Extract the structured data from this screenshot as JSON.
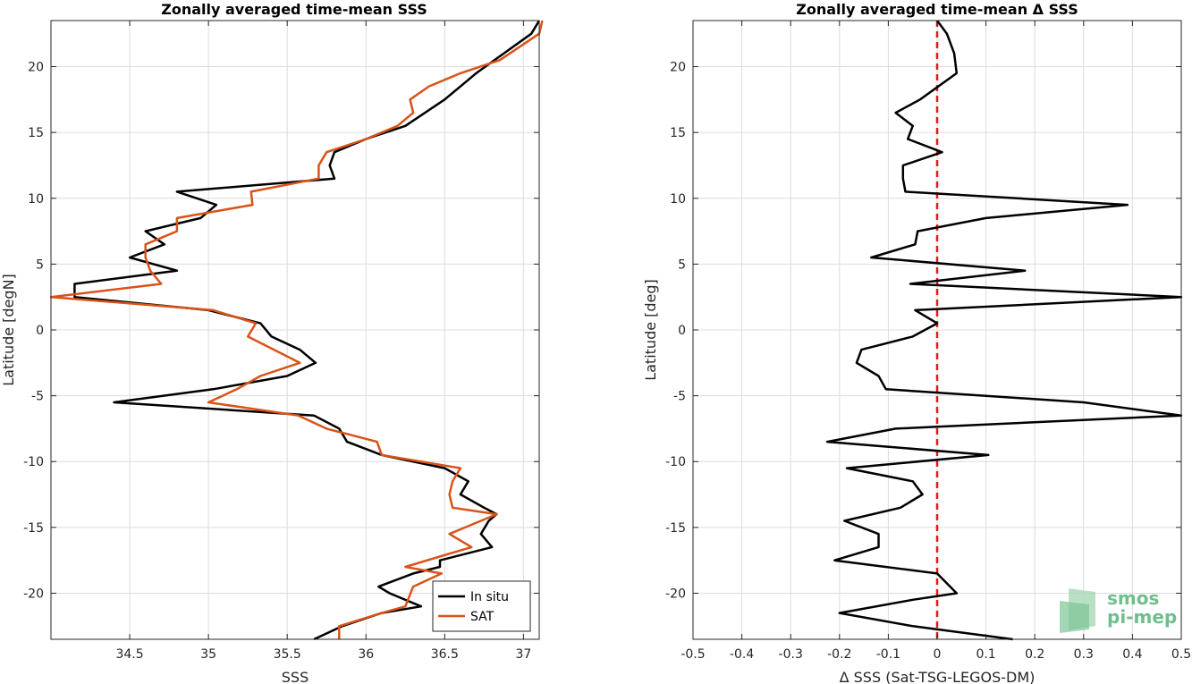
{
  "chart_data": [
    {
      "type": "line",
      "title": "Zonally averaged time-mean SSS",
      "xlabel": "SSS",
      "ylabel": "Latitude [degN]",
      "xlim": [
        34.0,
        37.1
      ],
      "ylim": [
        -23.5,
        23.5
      ],
      "xticks": [
        34.5,
        35,
        35.5,
        36,
        36.5,
        37
      ],
      "xtick_labels": [
        "34.5",
        "35",
        "35.5",
        "36",
        "36.5",
        "37"
      ],
      "yticks": [
        -20,
        -15,
        -10,
        -5,
        0,
        5,
        10,
        15,
        20
      ],
      "ytick_labels": [
        "-20",
        "-15",
        "-10",
        "-5",
        "0",
        "5",
        "10",
        "15",
        "20"
      ],
      "grid": true,
      "legend": "bottom-right",
      "series": [
        {
          "name": "In situ",
          "color": "#000000",
          "x": [
            35.67,
            35.85,
            36.1,
            36.35,
            36.15,
            36.08,
            36.3,
            36.47,
            36.47,
            36.8,
            36.73,
            36.78,
            36.83,
            36.75,
            36.6,
            36.65,
            36.5,
            36.1,
            35.88,
            35.83,
            35.67,
            34.4,
            35.03,
            35.5,
            35.68,
            35.58,
            35.4,
            35.33,
            35.0,
            34.15,
            34.15,
            34.8,
            34.5,
            34.72,
            34.6,
            34.95,
            35.05,
            34.8,
            35.8,
            35.77,
            35.8,
            36.0,
            36.25,
            36.5,
            36.7,
            37.05,
            37.1
          ],
          "y": [
            -23.5,
            -22.5,
            -21.5,
            -21.0,
            -20.0,
            -19.5,
            -18.5,
            -18.0,
            -17.5,
            -16.5,
            -15.5,
            -14.5,
            -14.0,
            -13.5,
            -12.5,
            -11.5,
            -10.5,
            -9.5,
            -8.5,
            -7.5,
            -6.5,
            -5.5,
            -4.5,
            -3.5,
            -2.5,
            -1.5,
            -0.5,
            0.5,
            1.5,
            2.5,
            3.5,
            4.5,
            5.5,
            6.5,
            7.5,
            8.5,
            9.5,
            10.5,
            11.5,
            12.5,
            13.5,
            14.5,
            15.5,
            17.5,
            19.5,
            22.5,
            23.5
          ]
        },
        {
          "name": "SAT",
          "color": "#d95319",
          "x": [
            35.83,
            35.83,
            36.1,
            36.25,
            36.3,
            36.48,
            36.25,
            36.67,
            36.53,
            36.83,
            36.55,
            36.53,
            36.55,
            36.6,
            36.1,
            36.07,
            35.75,
            35.57,
            35.0,
            35.18,
            35.33,
            35.58,
            35.25,
            35.3,
            35.03,
            34.0,
            34.7,
            34.63,
            34.6,
            34.6,
            34.8,
            34.8,
            35.28,
            35.27,
            35.7,
            35.7,
            35.75,
            36.0,
            36.2,
            36.3,
            36.28,
            36.4,
            36.6,
            36.85,
            37.1,
            37.12
          ],
          "y": [
            -23.5,
            -22.5,
            -21.5,
            -21.0,
            -19.5,
            -18.5,
            -18.0,
            -16.5,
            -15.5,
            -14.0,
            -13.5,
            -12.5,
            -11.5,
            -10.5,
            -9.5,
            -8.5,
            -7.5,
            -6.5,
            -5.5,
            -4.5,
            -3.5,
            -2.5,
            -0.5,
            0.5,
            1.5,
            2.5,
            3.5,
            4.5,
            5.5,
            6.5,
            7.5,
            8.5,
            9.5,
            10.5,
            11.5,
            12.5,
            13.5,
            14.5,
            15.5,
            16.5,
            17.5,
            18.5,
            19.5,
            20.5,
            22.5,
            23.5
          ]
        }
      ]
    },
    {
      "type": "line",
      "title": "Zonally averaged time-mean Δ SSS",
      "xlabel": "Δ SSS (Sat-TSG-LEGOS-DM)",
      "ylabel": "Latitude [deg]",
      "xlim": [
        -0.5,
        0.5
      ],
      "ylim": [
        -23.5,
        23.5
      ],
      "xticks": [
        -0.5,
        -0.4,
        -0.3,
        -0.2,
        -0.1,
        0,
        0.1,
        0.2,
        0.3,
        0.4,
        0.5
      ],
      "xtick_labels": [
        "-0.5",
        "-0.4",
        "-0.3",
        "-0.2",
        "-0.1",
        "0",
        "0.1",
        "0.2",
        "0.3",
        "0.4",
        "0.5"
      ],
      "yticks": [
        -20,
        -15,
        -10,
        -5,
        0,
        5,
        10,
        15,
        20
      ],
      "ytick_labels": [
        "-20",
        "-15",
        "-10",
        "-5",
        "0",
        "5",
        "10",
        "15",
        "20"
      ],
      "grid": true,
      "reference_line": {
        "x": 0,
        "color": "#e31a1c",
        "style": "dashed"
      },
      "series": [
        {
          "color": "#000000",
          "x": [
            0.155,
            -0.05,
            -0.2,
            -0.05,
            0.04,
            0.0,
            -0.21,
            -0.12,
            -0.12,
            -0.19,
            -0.075,
            -0.03,
            -0.05,
            -0.185,
            0.105,
            -0.225,
            -0.085,
            0.5,
            0.3,
            -0.105,
            -0.12,
            -0.165,
            -0.155,
            -0.05,
            0.0,
            -0.045,
            0.5,
            -0.055,
            0.18,
            -0.135,
            -0.045,
            -0.04,
            0.1,
            0.39,
            -0.065,
            -0.07,
            -0.07,
            0.01,
            -0.06,
            -0.05,
            -0.085,
            -0.035,
            0.04,
            0.035,
            0.02,
            0.0
          ],
          "y": [
            -23.5,
            -22.5,
            -21.5,
            -20.5,
            -20.0,
            -18.5,
            -17.5,
            -16.5,
            -15.5,
            -14.5,
            -13.5,
            -12.5,
            -11.5,
            -10.5,
            -9.5,
            -8.5,
            -7.5,
            -6.5,
            -5.5,
            -4.5,
            -3.5,
            -2.5,
            -1.5,
            -0.5,
            0.5,
            1.5,
            2.5,
            3.5,
            4.5,
            5.5,
            6.5,
            7.5,
            8.5,
            9.5,
            10.5,
            11.5,
            12.5,
            13.5,
            14.5,
            15.5,
            16.5,
            17.5,
            19.5,
            21.0,
            22.5,
            23.5
          ]
        }
      ]
    }
  ],
  "logo": {
    "line1": "smos",
    "line2": "pi-mep"
  }
}
